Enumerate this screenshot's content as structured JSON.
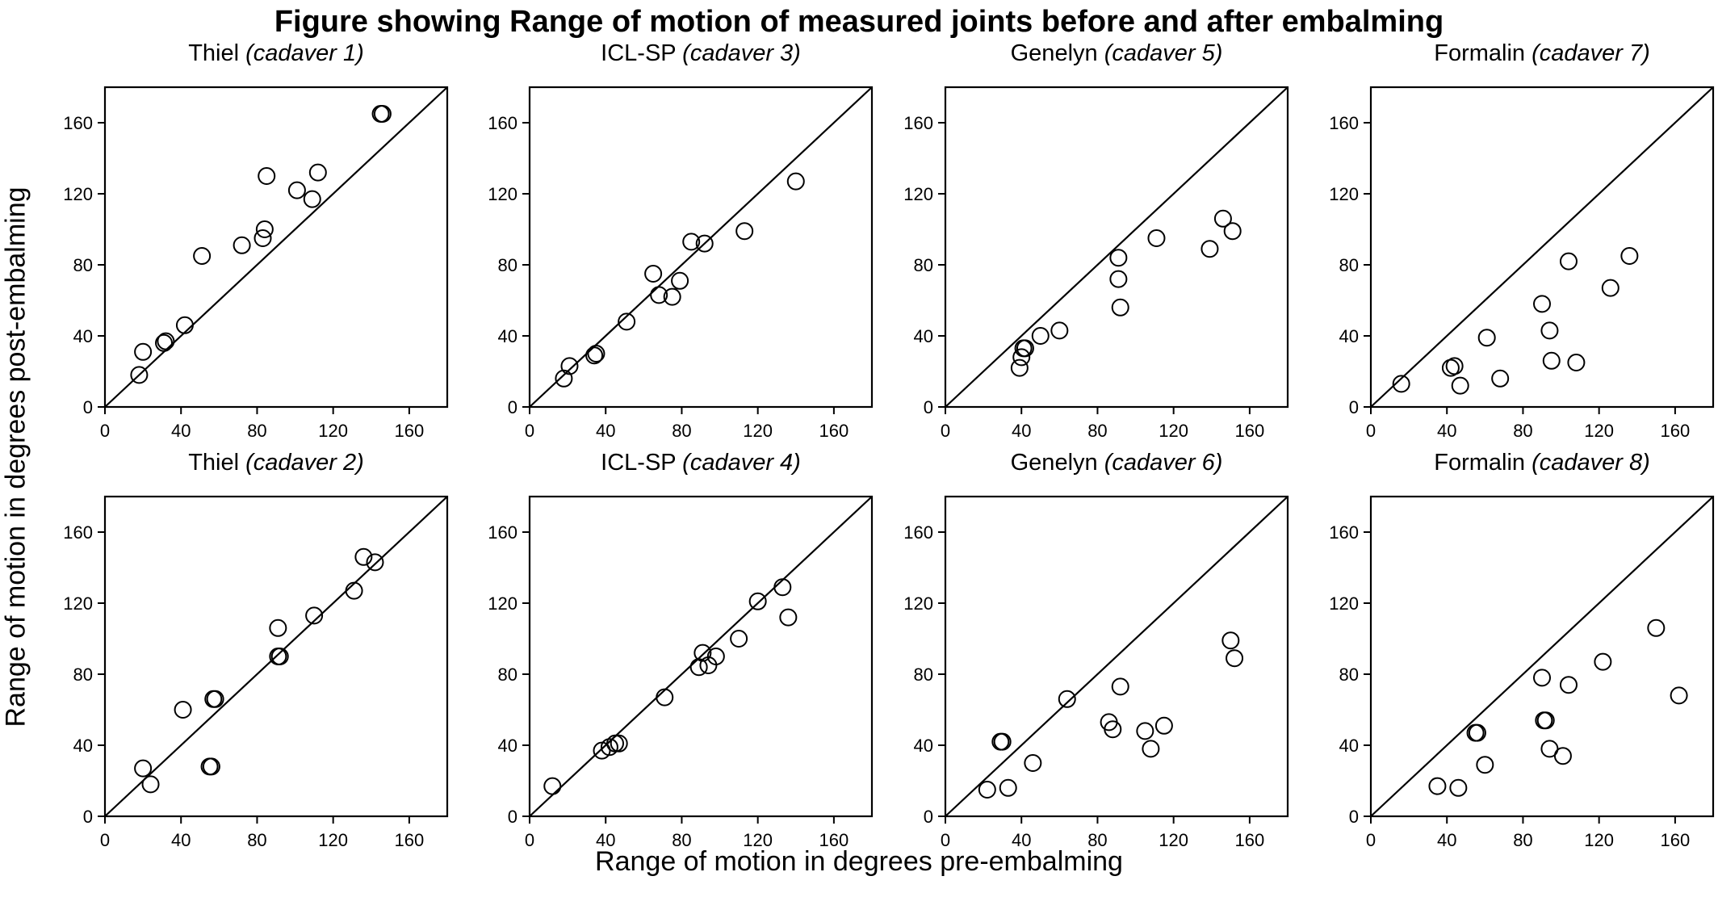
{
  "figure": {
    "title": "Figure showing Range of motion of measured joints before and after embalming",
    "xlabel": "Range of motion in degrees pre-embalming",
    "ylabel": "Range of motion in degrees post-embalming"
  },
  "chart_data": [
    {
      "type": "scatter",
      "title": "Thiel",
      "subtitle": "(cadaver 1)",
      "xlim": [
        0,
        180
      ],
      "ylim": [
        0,
        180
      ],
      "xticks": [
        0,
        40,
        80,
        120,
        160
      ],
      "yticks": [
        0,
        40,
        80,
        120,
        160
      ],
      "reference_line": "y = x",
      "points": [
        [
          18,
          18
        ],
        [
          20,
          31
        ],
        [
          31,
          36
        ],
        [
          32,
          37
        ],
        [
          42,
          46
        ],
        [
          51,
          85
        ],
        [
          72,
          91
        ],
        [
          83,
          95
        ],
        [
          84,
          100
        ],
        [
          85,
          130
        ],
        [
          101,
          122
        ],
        [
          109,
          117
        ],
        [
          112,
          132
        ],
        [
          145,
          165
        ],
        [
          146,
          165
        ]
      ]
    },
    {
      "type": "scatter",
      "title": "ICL-SP",
      "subtitle": "(cadaver 3)",
      "xlim": [
        0,
        180
      ],
      "ylim": [
        0,
        180
      ],
      "xticks": [
        0,
        40,
        80,
        120,
        160
      ],
      "yticks": [
        0,
        40,
        80,
        120,
        160
      ],
      "reference_line": "y = x",
      "points": [
        [
          18,
          16
        ],
        [
          21,
          23
        ],
        [
          34,
          29
        ],
        [
          35,
          30
        ],
        [
          51,
          48
        ],
        [
          65,
          75
        ],
        [
          68,
          63
        ],
        [
          75,
          62
        ],
        [
          79,
          71
        ],
        [
          85,
          93
        ],
        [
          92,
          92
        ],
        [
          113,
          99
        ],
        [
          140,
          127
        ]
      ]
    },
    {
      "type": "scatter",
      "title": "Genelyn",
      "subtitle": "(cadaver 5)",
      "xlim": [
        0,
        180
      ],
      "ylim": [
        0,
        180
      ],
      "xticks": [
        0,
        40,
        80,
        120,
        160
      ],
      "yticks": [
        0,
        40,
        80,
        120,
        160
      ],
      "reference_line": "y = x",
      "points": [
        [
          39,
          22
        ],
        [
          40,
          28
        ],
        [
          41,
          33
        ],
        [
          42,
          33
        ],
        [
          50,
          40
        ],
        [
          60,
          43
        ],
        [
          91,
          84
        ],
        [
          91,
          72
        ],
        [
          92,
          56
        ],
        [
          111,
          95
        ],
        [
          139,
          89
        ],
        [
          146,
          106
        ],
        [
          151,
          99
        ]
      ]
    },
    {
      "type": "scatter",
      "title": "Formalin",
      "subtitle": "(cadaver 7)",
      "xlim": [
        0,
        180
      ],
      "ylim": [
        0,
        180
      ],
      "xticks": [
        0,
        40,
        80,
        120,
        160
      ],
      "yticks": [
        0,
        40,
        80,
        120,
        160
      ],
      "reference_line": "y = x",
      "points": [
        [
          16,
          13
        ],
        [
          42,
          22
        ],
        [
          44,
          23
        ],
        [
          47,
          12
        ],
        [
          68,
          16
        ],
        [
          61,
          39
        ],
        [
          90,
          58
        ],
        [
          94,
          43
        ],
        [
          95,
          26
        ],
        [
          104,
          82
        ],
        [
          108,
          25
        ],
        [
          126,
          67
        ],
        [
          136,
          85
        ]
      ]
    },
    {
      "type": "scatter",
      "title": "Thiel",
      "subtitle": "(cadaver 2)",
      "xlim": [
        0,
        180
      ],
      "ylim": [
        0,
        180
      ],
      "xticks": [
        0,
        40,
        80,
        120,
        160
      ],
      "yticks": [
        0,
        40,
        80,
        120,
        160
      ],
      "reference_line": "y = x",
      "points": [
        [
          20,
          27
        ],
        [
          24,
          18
        ],
        [
          41,
          60
        ],
        [
          55,
          28
        ],
        [
          56,
          28
        ],
        [
          57,
          66
        ],
        [
          58,
          66
        ],
        [
          91,
          90
        ],
        [
          92,
          90
        ],
        [
          91,
          106
        ],
        [
          110,
          113
        ],
        [
          131,
          127
        ],
        [
          136,
          146
        ],
        [
          142,
          143
        ]
      ]
    },
    {
      "type": "scatter",
      "title": "ICL-SP",
      "subtitle": "(cadaver 4)",
      "xlim": [
        0,
        180
      ],
      "ylim": [
        0,
        180
      ],
      "xticks": [
        0,
        40,
        80,
        120,
        160
      ],
      "yticks": [
        0,
        40,
        80,
        120,
        160
      ],
      "reference_line": "y = x",
      "points": [
        [
          12,
          17
        ],
        [
          38,
          37
        ],
        [
          42,
          39
        ],
        [
          45,
          41
        ],
        [
          47,
          41
        ],
        [
          71,
          67
        ],
        [
          89,
          84
        ],
        [
          91,
          92
        ],
        [
          94,
          85
        ],
        [
          98,
          90
        ],
        [
          110,
          100
        ],
        [
          120,
          121
        ],
        [
          133,
          129
        ],
        [
          136,
          112
        ]
      ]
    },
    {
      "type": "scatter",
      "title": "Genelyn",
      "subtitle": "(cadaver 6)",
      "xlim": [
        0,
        180
      ],
      "ylim": [
        0,
        180
      ],
      "xticks": [
        0,
        40,
        80,
        120,
        160
      ],
      "yticks": [
        0,
        40,
        80,
        120,
        160
      ],
      "reference_line": "y = x",
      "points": [
        [
          22,
          15
        ],
        [
          33,
          16
        ],
        [
          29,
          42
        ],
        [
          30,
          42
        ],
        [
          46,
          30
        ],
        [
          64,
          66
        ],
        [
          86,
          53
        ],
        [
          88,
          49
        ],
        [
          92,
          73
        ],
        [
          105,
          48
        ],
        [
          108,
          38
        ],
        [
          115,
          51
        ],
        [
          150,
          99
        ],
        [
          152,
          89
        ]
      ]
    },
    {
      "type": "scatter",
      "title": "Formalin",
      "subtitle": "(cadaver 8)",
      "xlim": [
        0,
        180
      ],
      "ylim": [
        0,
        180
      ],
      "xticks": [
        0,
        40,
        80,
        120,
        160
      ],
      "yticks": [
        0,
        40,
        80,
        120,
        160
      ],
      "reference_line": "y = x",
      "points": [
        [
          35,
          17
        ],
        [
          46,
          16
        ],
        [
          55,
          47
        ],
        [
          56,
          47
        ],
        [
          60,
          29
        ],
        [
          90,
          78
        ],
        [
          91,
          54
        ],
        [
          92,
          54
        ],
        [
          94,
          38
        ],
        [
          101,
          34
        ],
        [
          104,
          74
        ],
        [
          122,
          87
        ],
        [
          150,
          106
        ],
        [
          162,
          68
        ]
      ]
    }
  ]
}
